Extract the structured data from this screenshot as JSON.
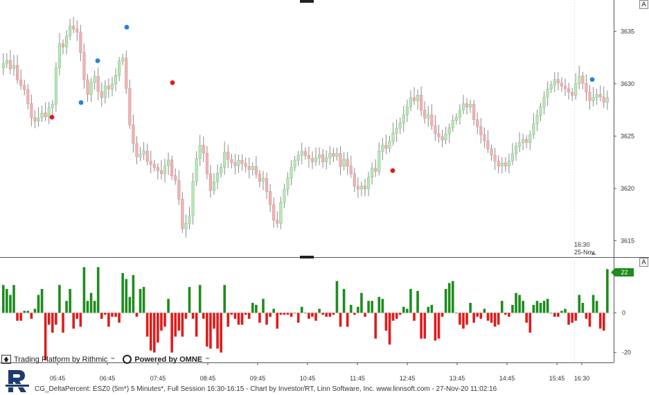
{
  "chart_data": [
    {
      "type": "candlestick",
      "ylim": [
        3613.5,
        3638.0
      ],
      "yticks": [
        3615,
        3620,
        3625,
        3630,
        3635
      ],
      "x_ticks": [
        "05:45",
        "06:45",
        "07:45",
        "08:45",
        "09:45",
        "10:45",
        "11:45",
        "12:45",
        "13:45",
        "14:45",
        "15:45",
        "16:30"
      ],
      "timestamp": [
        "16:30",
        "25-Nov"
      ],
      "candles": []
    },
    {
      "type": "bar",
      "name": "CG_DeltaPercent",
      "ylim": [
        -25,
        27
      ],
      "yticks": [
        0,
        -20
      ],
      "last_value": "22",
      "values": [
        14,
        12,
        9,
        14,
        -4,
        -4,
        1,
        1,
        -3,
        2,
        9,
        12,
        -24,
        -6,
        -10,
        -6,
        14,
        -10,
        6,
        12,
        -8,
        -3,
        -7,
        23,
        6,
        10,
        6,
        23,
        -3,
        -1,
        -7,
        -2,
        -2,
        -5,
        20,
        17,
        8,
        19,
        -2,
        12,
        13,
        -12,
        -19,
        -20,
        -15,
        -9,
        -7,
        7,
        -20,
        -12,
        -9,
        -12,
        -3,
        13,
        -3,
        -12,
        14,
        -3,
        -17,
        -18,
        -8,
        -18,
        -20,
        14,
        -7,
        -1,
        -3,
        -6,
        -6,
        -1,
        -3,
        5,
        4,
        -5,
        7,
        -6,
        -2,
        2,
        -8,
        -1,
        -1,
        -1,
        -2,
        0,
        -5,
        3,
        0,
        -3,
        -2,
        -4,
        2,
        -1,
        -2,
        -2,
        -1,
        16,
        -7,
        12,
        -7,
        4,
        -1,
        3,
        10,
        -2,
        6,
        6,
        -13,
        8,
        7,
        -9,
        -16,
        -4,
        -3,
        -1,
        3,
        2,
        12,
        -4,
        11,
        -13,
        -13,
        3,
        4,
        -14,
        -13,
        -2,
        12,
        15,
        16,
        0,
        -6,
        -8,
        -6,
        5,
        -5,
        -2,
        -3,
        2,
        -4,
        -5,
        -7,
        -6,
        6,
        -1,
        -2,
        4,
        10,
        9,
        6,
        -5,
        -10,
        4,
        6,
        5,
        6,
        7,
        0,
        -2,
        -2,
        1,
        2,
        -6,
        -5,
        -4,
        9,
        5,
        -3,
        -7,
        9,
        6,
        -8,
        -9,
        22
      ],
      "rise_idx": [],
      "fall_idx": []
    }
  ],
  "signals": {
    "blue": [
      [
        117,
        3628.2
      ],
      [
        141,
        3632.2
      ],
      [
        183,
        3635.4
      ],
      [
        855,
        3630.4
      ]
    ],
    "red": [
      [
        75,
        3626.8
      ],
      [
        249,
        3630.1
      ],
      [
        567,
        3621.7
      ]
    ]
  },
  "ui": {
    "axis_btn": "A",
    "branding_rithmic": "Trading Platform by Rithmic",
    "branding_tm1": "™",
    "branding_omne": "Powered by OMNE",
    "branding_tm2": "™",
    "footer": "CG_DeltaPercent: ESZ0 (5m*) 5 Minutes*, Full Session 16:30-16:15 - Chart by Investor/RT, Linn Software, Inc. www.linnsoft.com - 27-Nov-20 11:02:16",
    "colors": {
      "up": "#b9e6b9",
      "down": "#eeb4b4",
      "delta_pos": "#1e8c1e",
      "delta_neg": "#e01b1b",
      "signal_blue": "#1e82e6",
      "signal_red": "#e01b1b"
    }
  }
}
